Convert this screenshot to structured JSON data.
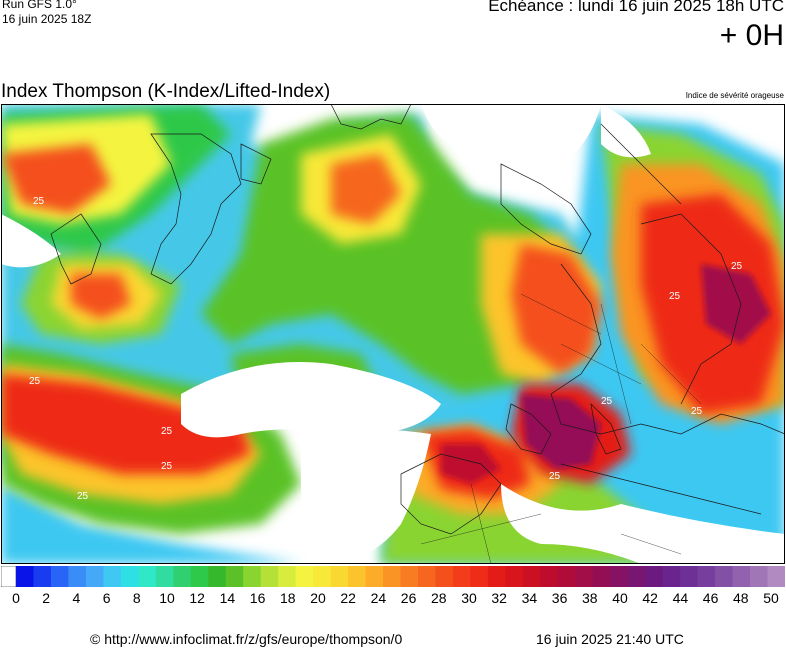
{
  "header": {
    "run_label": "Run GFS 1.0°",
    "run_date": "16 juin 2025 18Z",
    "echeance": "Echéance : lundi 16 juin 2025 18h UTC",
    "offset": "+ 0H"
  },
  "map": {
    "title": "Index Thompson (K-Index/Lifted-Index)",
    "subtitle": "Indice de sévérité orageuse",
    "contour_labels": [
      "25",
      "25",
      "25",
      "25",
      "25",
      "25",
      "25",
      "25",
      "25",
      "25"
    ]
  },
  "scale": {
    "labels": [
      "0",
      "2",
      "4",
      "6",
      "8",
      "10",
      "12",
      "14",
      "16",
      "18",
      "20",
      "22",
      "24",
      "26",
      "28",
      "30",
      "32",
      "34",
      "36",
      "38",
      "40",
      "42",
      "44",
      "46",
      "48",
      "50"
    ],
    "colors": [
      "#0a14e8",
      "#1a3cf0",
      "#2864f5",
      "#3a8cf7",
      "#44aaf7",
      "#3ec8f2",
      "#2ee0e6",
      "#2ee8c8",
      "#30dca0",
      "#30d070",
      "#2ec84a",
      "#36b82c",
      "#5ac228",
      "#8ad430",
      "#b4e038",
      "#d8ec3e",
      "#f4f440",
      "#f8e838",
      "#fad832",
      "#fcc42c",
      "#fcac28",
      "#fa9424",
      "#f87c22",
      "#f6661e",
      "#f4501c",
      "#f23c1a",
      "#ee2c18",
      "#e41c18",
      "#d8141c",
      "#cc1024",
      "#be0c2e",
      "#b00c3a",
      "#a20e48",
      "#940e56",
      "#861264",
      "#781672",
      "#6c1a80",
      "#6a248e",
      "#6e3096",
      "#783e9e",
      "#8450a6",
      "#9262ae",
      "#a076b6",
      "#b08ac0"
    ]
  },
  "footer": {
    "url": "© http://www.infoclimat.fr/z/gfs/europe/thompson/0",
    "timestamp": "16 juin 2025 21:40 UTC"
  }
}
